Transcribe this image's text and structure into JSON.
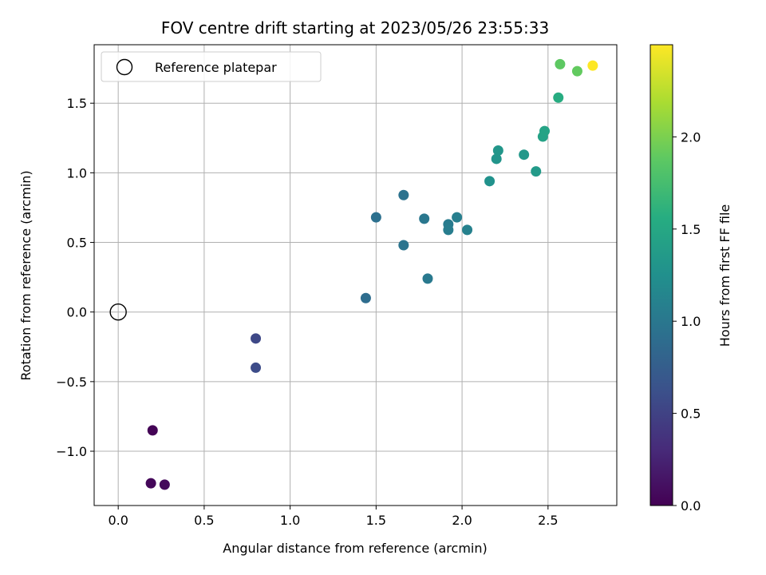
{
  "chart_data": {
    "type": "scatter",
    "title": "FOV centre drift starting at 2023/05/26 23:55:33",
    "xlabel": "Angular distance from reference (arcmin)",
    "ylabel": "Rotation from reference (arcmin)",
    "xlim": [
      -0.14,
      2.9
    ],
    "ylim": [
      -1.39,
      1.92
    ],
    "x_ticks": [
      0.0,
      0.5,
      1.0,
      1.5,
      2.0,
      2.5
    ],
    "x_tick_labels": [
      "0.0",
      "0.5",
      "1.0",
      "1.5",
      "2.0",
      "2.5"
    ],
    "y_ticks": [
      -1.0,
      -0.5,
      0.0,
      0.5,
      1.0,
      1.5
    ],
    "y_tick_labels": [
      "−1.0",
      "−0.5",
      "0.0",
      "0.5",
      "1.0",
      "1.5"
    ],
    "grid": true,
    "colormap": "viridis",
    "colorbar": {
      "label": "Hours from first FF file",
      "range": [
        0.0,
        2.5
      ],
      "ticks": [
        0.0,
        0.5,
        1.0,
        1.5,
        2.0
      ],
      "tick_labels": [
        "0.0",
        "0.5",
        "1.0",
        "1.5",
        "2.0"
      ]
    },
    "legend": {
      "placement": "top-left",
      "entries": [
        "Reference platepar"
      ]
    },
    "reference_point": {
      "x": 0.0,
      "y": 0.0,
      "label": "Reference platepar"
    },
    "series": [
      {
        "name": "FOV centre drift",
        "points": [
          {
            "x": 0.2,
            "y": -0.85,
            "c": 0.02
          },
          {
            "x": 0.19,
            "y": -1.23,
            "c": 0.04
          },
          {
            "x": 0.27,
            "y": -1.24,
            "c": 0.06
          },
          {
            "x": 0.8,
            "y": -0.19,
            "c": 0.55
          },
          {
            "x": 0.8,
            "y": -0.4,
            "c": 0.58
          },
          {
            "x": 1.44,
            "y": 0.1,
            "c": 0.9
          },
          {
            "x": 1.5,
            "y": 0.68,
            "c": 0.93
          },
          {
            "x": 1.66,
            "y": 0.84,
            "c": 0.95
          },
          {
            "x": 1.66,
            "y": 0.48,
            "c": 0.97
          },
          {
            "x": 1.78,
            "y": 0.67,
            "c": 1.0
          },
          {
            "x": 1.8,
            "y": 0.24,
            "c": 1.02
          },
          {
            "x": 1.92,
            "y": 0.63,
            "c": 1.04
          },
          {
            "x": 1.92,
            "y": 0.59,
            "c": 1.06
          },
          {
            "x": 1.97,
            "y": 0.68,
            "c": 1.08
          },
          {
            "x": 2.03,
            "y": 0.59,
            "c": 1.1
          },
          {
            "x": 2.16,
            "y": 0.94,
            "c": 1.27
          },
          {
            "x": 2.2,
            "y": 1.1,
            "c": 1.3
          },
          {
            "x": 2.21,
            "y": 1.16,
            "c": 1.32
          },
          {
            "x": 2.36,
            "y": 1.13,
            "c": 1.34
          },
          {
            "x": 2.43,
            "y": 1.01,
            "c": 1.36
          },
          {
            "x": 2.47,
            "y": 1.26,
            "c": 1.44
          },
          {
            "x": 2.48,
            "y": 1.3,
            "c": 1.46
          },
          {
            "x": 2.56,
            "y": 1.54,
            "c": 1.55
          },
          {
            "x": 2.57,
            "y": 1.78,
            "c": 1.88
          },
          {
            "x": 2.67,
            "y": 1.73,
            "c": 1.9
          },
          {
            "x": 2.76,
            "y": 1.77,
            "c": 2.5
          }
        ]
      }
    ]
  }
}
